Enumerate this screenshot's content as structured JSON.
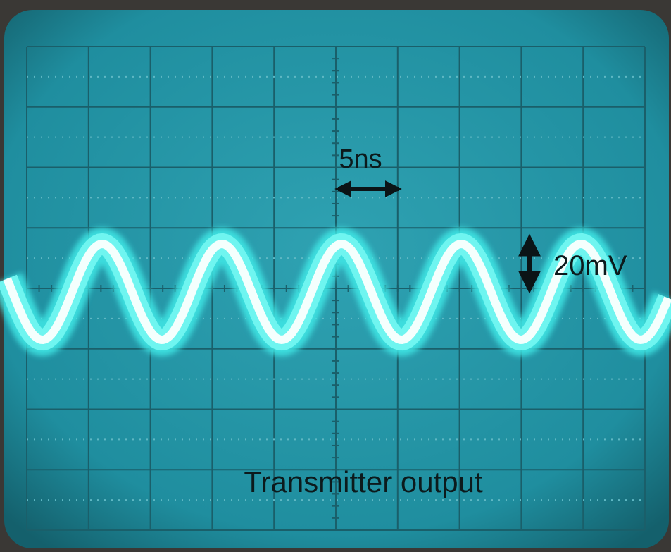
{
  "labels": {
    "time_scale": "5ns",
    "voltage_scale": "20mV",
    "caption": "Transmitter output"
  }
}
